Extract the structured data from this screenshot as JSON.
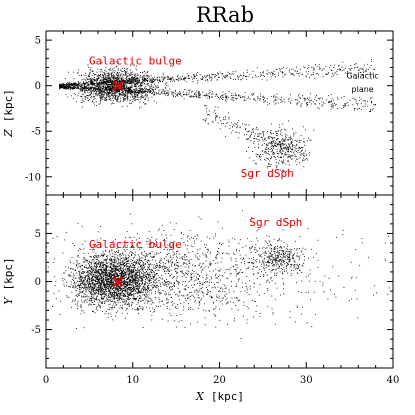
{
  "chart_data": {
    "type": "scatter",
    "title": "RRab",
    "colors": {
      "points": "#000000",
      "markers": "#e00000",
      "annotations": "#e00000"
    },
    "shared_x": {
      "label_var": "X",
      "label_unit": "[kpc]",
      "lim": [
        0,
        40
      ],
      "ticks": [
        0,
        10,
        20,
        30,
        40
      ]
    },
    "panels": [
      {
        "id": "top",
        "ylabel_var": "Z",
        "ylabel_unit": "[kpc]",
        "ylim": [
          -12,
          6
        ],
        "yticks": [
          5,
          0,
          -5,
          -10
        ],
        "markers": [
          {
            "x": 8.3,
            "y": 0.0,
            "symbol": "x"
          }
        ],
        "annotations": [
          {
            "text": "Galactic bulge",
            "x": 10.3,
            "y": 2.3,
            "color": "#e00000",
            "size": "large"
          },
          {
            "text": "Sgr dSph",
            "x": 25.5,
            "y": -10.0,
            "color": "#e00000",
            "size": "large"
          },
          {
            "text": "Galactic",
            "x": 36.5,
            "y": 0.8,
            "color": "#000000",
            "size": "small"
          },
          {
            "text": "plane",
            "x": 36.5,
            "y": -0.7,
            "color": "#000000",
            "size": "small"
          }
        ],
        "clusters": [
          {
            "name": "galactic bulge",
            "cx": 8.0,
            "cy": 0.0,
            "sx": 2.2,
            "sy": 0.9,
            "n": 1400
          },
          {
            "name": "galactic plane",
            "xmin": 1.5,
            "xmax": 38.0,
            "y_slope": 0.06,
            "y_spread": 0.6,
            "n": 1500
          },
          {
            "name": "sgr dsph",
            "cx": 27.0,
            "cy": -6.8,
            "sx": 1.5,
            "sy": 1.1,
            "n": 350
          },
          {
            "name": "sgr stream",
            "xmin": 18.0,
            "xmax": 30.0,
            "y_from": -3.0,
            "y_to": -7.5,
            "n": 180
          }
        ]
      },
      {
        "id": "bottom",
        "ylabel_var": "Y",
        "ylabel_unit": "[kpc]",
        "ylim": [
          -9,
          9
        ],
        "yticks": [
          5,
          0,
          -5
        ],
        "markers": [
          {
            "x": 8.3,
            "y": 0.0,
            "symbol": "x"
          }
        ],
        "annotations": [
          {
            "text": "Sgr dSph",
            "x": 26.5,
            "y": 5.8,
            "color": "#e00000",
            "size": "large"
          },
          {
            "text": "Galactic bulge",
            "x": 10.3,
            "y": 3.5,
            "color": "#e00000",
            "size": "large"
          }
        ],
        "clusters": [
          {
            "name": "galactic bulge",
            "cx": 7.8,
            "cy": 0.2,
            "sx": 2.3,
            "sy": 1.3,
            "n": 2200
          },
          {
            "name": "disk halo",
            "cx": 14.0,
            "cy": 0.8,
            "sx": 6.0,
            "sy": 2.2,
            "n": 1200
          },
          {
            "name": "sgr dsph",
            "cx": 26.8,
            "cy": 2.5,
            "sx": 1.5,
            "sy": 0.8,
            "n": 320
          },
          {
            "name": "outer sparse",
            "cx": 25.0,
            "cy": 1.0,
            "sx": 8.0,
            "sy": 3.0,
            "n": 220
          }
        ]
      }
    ]
  }
}
